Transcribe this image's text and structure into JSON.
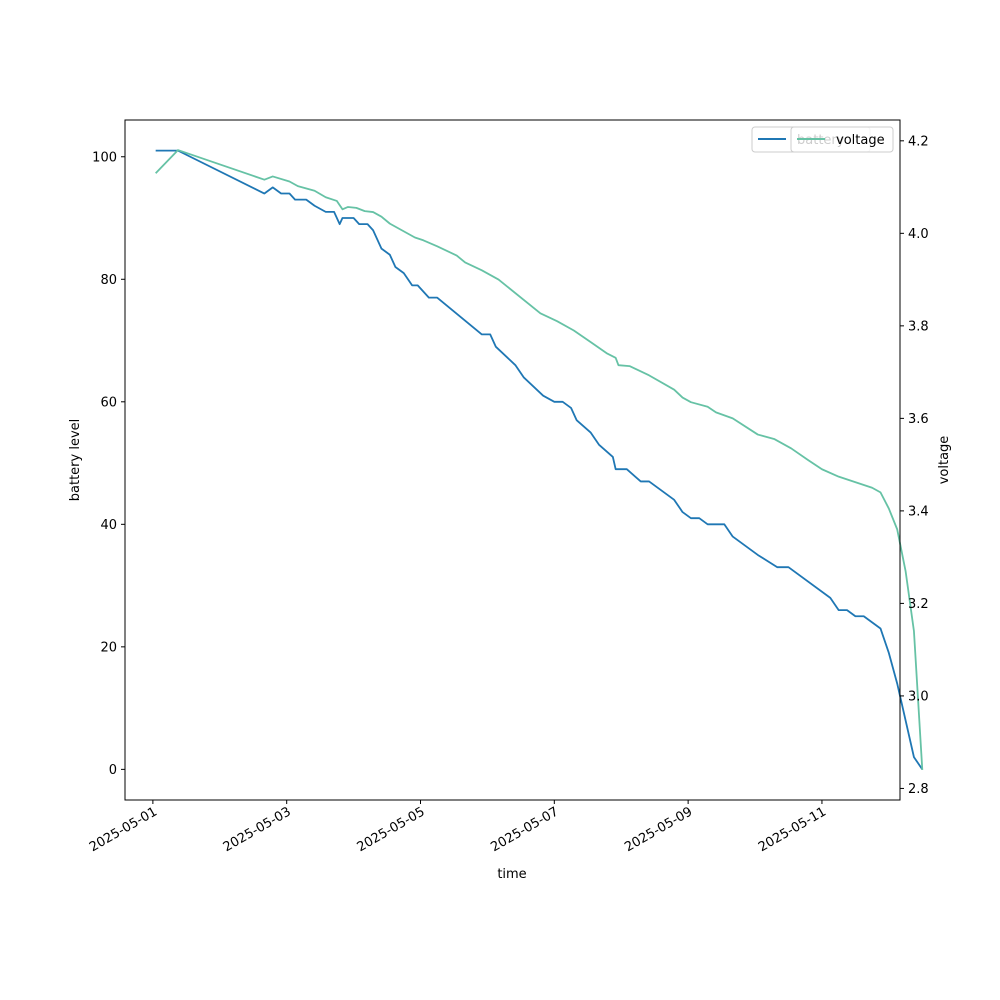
{
  "chart_data": {
    "type": "line",
    "xlabel": "time",
    "ylabel_left": "battery level",
    "ylabel_right": "voltage",
    "x_ticks": [
      "2025-05-01",
      "2025-05-03",
      "2025-05-05",
      "2025-05-07",
      "2025-05-09",
      "2025-05-11"
    ],
    "x_range": [
      "2025-04-30T14:00",
      "2025-05-12T04:00"
    ],
    "y_left_range": [
      -5,
      106
    ],
    "y_left_ticks": [
      0,
      20,
      40,
      60,
      80,
      100
    ],
    "y_right_range": [
      2.775,
      4.245
    ],
    "y_right_ticks": [
      2.8,
      3.0,
      3.2,
      3.4,
      3.6,
      3.8,
      4.0,
      4.2
    ],
    "legend_position": "upper-right",
    "grid": false,
    "colors": {
      "battery": "#1f77b4",
      "voltage": "#66c2a5"
    },
    "series": [
      {
        "name": "battery",
        "axis": "left",
        "color": "#1f77b4",
        "points": [
          [
            "2025-05-01T01:00",
            101
          ],
          [
            "2025-05-01T09:00",
            101
          ],
          [
            "2025-05-02T16:00",
            94
          ],
          [
            "2025-05-02T19:00",
            95
          ],
          [
            "2025-05-02T22:00",
            94
          ],
          [
            "2025-05-03T01:00",
            94
          ],
          [
            "2025-05-03T03:00",
            93
          ],
          [
            "2025-05-03T07:00",
            93
          ],
          [
            "2025-05-03T10:00",
            92
          ],
          [
            "2025-05-03T14:00",
            91
          ],
          [
            "2025-05-03T17:00",
            91
          ],
          [
            "2025-05-03T19:00",
            89
          ],
          [
            "2025-05-03T20:00",
            90
          ],
          [
            "2025-05-04T00:00",
            90
          ],
          [
            "2025-05-04T02:00",
            89
          ],
          [
            "2025-05-04T05:00",
            89
          ],
          [
            "2025-05-04T07:00",
            88
          ],
          [
            "2025-05-04T10:00",
            85
          ],
          [
            "2025-05-04T13:00",
            84
          ],
          [
            "2025-05-04T15:00",
            82
          ],
          [
            "2025-05-04T18:00",
            81
          ],
          [
            "2025-05-04T21:00",
            79
          ],
          [
            "2025-05-04T23:00",
            79
          ],
          [
            "2025-05-05T03:00",
            77
          ],
          [
            "2025-05-05T06:00",
            77
          ],
          [
            "2025-05-05T22:00",
            71
          ],
          [
            "2025-05-06T01:00",
            71
          ],
          [
            "2025-05-06T03:00",
            69
          ],
          [
            "2025-05-06T10:00",
            66
          ],
          [
            "2025-05-06T13:00",
            64
          ],
          [
            "2025-05-06T20:00",
            61
          ],
          [
            "2025-05-07T00:00",
            60
          ],
          [
            "2025-05-07T03:00",
            60
          ],
          [
            "2025-05-07T06:00",
            59
          ],
          [
            "2025-05-07T08:00",
            57
          ],
          [
            "2025-05-07T13:00",
            55
          ],
          [
            "2025-05-07T16:00",
            53
          ],
          [
            "2025-05-07T21:00",
            51
          ],
          [
            "2025-05-07T22:00",
            49
          ],
          [
            "2025-05-08T02:00",
            49
          ],
          [
            "2025-05-08T07:00",
            47
          ],
          [
            "2025-05-08T10:00",
            47
          ],
          [
            "2025-05-08T19:00",
            44
          ],
          [
            "2025-05-08T22:00",
            42
          ],
          [
            "2025-05-09T01:00",
            41
          ],
          [
            "2025-05-09T04:00",
            41
          ],
          [
            "2025-05-09T07:00",
            40
          ],
          [
            "2025-05-09T13:00",
            40
          ],
          [
            "2025-05-09T16:00",
            38
          ],
          [
            "2025-05-10T01:00",
            35
          ],
          [
            "2025-05-10T08:00",
            33
          ],
          [
            "2025-05-10T12:00",
            33
          ],
          [
            "2025-05-11T03:00",
            28
          ],
          [
            "2025-05-11T06:00",
            26
          ],
          [
            "2025-05-11T09:00",
            26
          ],
          [
            "2025-05-11T12:00",
            25
          ],
          [
            "2025-05-11T15:00",
            25
          ],
          [
            "2025-05-11T21:00",
            23
          ],
          [
            "2025-05-12T00:00",
            19
          ],
          [
            "2025-05-12T03:00",
            14
          ],
          [
            "2025-05-12T09:00",
            2
          ],
          [
            "2025-05-12T12:00",
            0
          ]
        ]
      },
      {
        "name": "voltage",
        "axis": "right",
        "color": "#66c2a5",
        "points": [
          [
            "2025-05-01T01:00",
            4.13
          ],
          [
            "2025-05-01T09:00",
            4.18
          ],
          [
            "2025-05-02T16:00",
            4.116
          ],
          [
            "2025-05-02T19:00",
            4.123
          ],
          [
            "2025-05-03T01:00",
            4.112
          ],
          [
            "2025-05-03T04:00",
            4.102
          ],
          [
            "2025-05-03T10:00",
            4.092
          ],
          [
            "2025-05-03T14:00",
            4.078
          ],
          [
            "2025-05-03T18:00",
            4.07
          ],
          [
            "2025-05-03T20:00",
            4.052
          ],
          [
            "2025-05-03T22:00",
            4.057
          ],
          [
            "2025-05-04T01:00",
            4.055
          ],
          [
            "2025-05-04T04:00",
            4.048
          ],
          [
            "2025-05-04T07:00",
            4.046
          ],
          [
            "2025-05-04T10:00",
            4.036
          ],
          [
            "2025-05-04T13:00",
            4.021
          ],
          [
            "2025-05-04T22:00",
            3.991
          ],
          [
            "2025-05-05T01:00",
            3.985
          ],
          [
            "2025-05-05T06:00",
            3.972
          ],
          [
            "2025-05-05T13:00",
            3.952
          ],
          [
            "2025-05-05T16:00",
            3.937
          ],
          [
            "2025-05-05T22:00",
            3.92
          ],
          [
            "2025-05-06T04:00",
            3.9
          ],
          [
            "2025-05-06T19:00",
            3.827
          ],
          [
            "2025-05-07T01:00",
            3.81
          ],
          [
            "2025-05-07T07:00",
            3.79
          ],
          [
            "2025-05-07T13:00",
            3.765
          ],
          [
            "2025-05-07T19:00",
            3.74
          ],
          [
            "2025-05-07T22:00",
            3.731
          ],
          [
            "2025-05-07T23:00",
            3.715
          ],
          [
            "2025-05-08T03:00",
            3.713
          ],
          [
            "2025-05-08T10:00",
            3.693
          ],
          [
            "2025-05-08T19:00",
            3.662
          ],
          [
            "2025-05-08T22:00",
            3.645
          ],
          [
            "2025-05-09T01:00",
            3.635
          ],
          [
            "2025-05-09T07:00",
            3.625
          ],
          [
            "2025-05-09T10:00",
            3.613
          ],
          [
            "2025-05-09T16:00",
            3.6
          ],
          [
            "2025-05-10T01:00",
            3.565
          ],
          [
            "2025-05-10T07:00",
            3.555
          ],
          [
            "2025-05-10T13:00",
            3.535
          ],
          [
            "2025-05-10T19:00",
            3.51
          ],
          [
            "2025-05-11T00:00",
            3.49
          ],
          [
            "2025-05-11T06:00",
            3.474
          ],
          [
            "2025-05-11T18:00",
            3.45
          ],
          [
            "2025-05-11T21:00",
            3.44
          ],
          [
            "2025-05-12T00:00",
            3.405
          ],
          [
            "2025-05-12T03:00",
            3.36
          ],
          [
            "2025-05-12T06:00",
            3.27
          ],
          [
            "2025-05-12T09:00",
            3.14
          ],
          [
            "2025-05-12T12:00",
            2.84
          ]
        ]
      }
    ]
  }
}
